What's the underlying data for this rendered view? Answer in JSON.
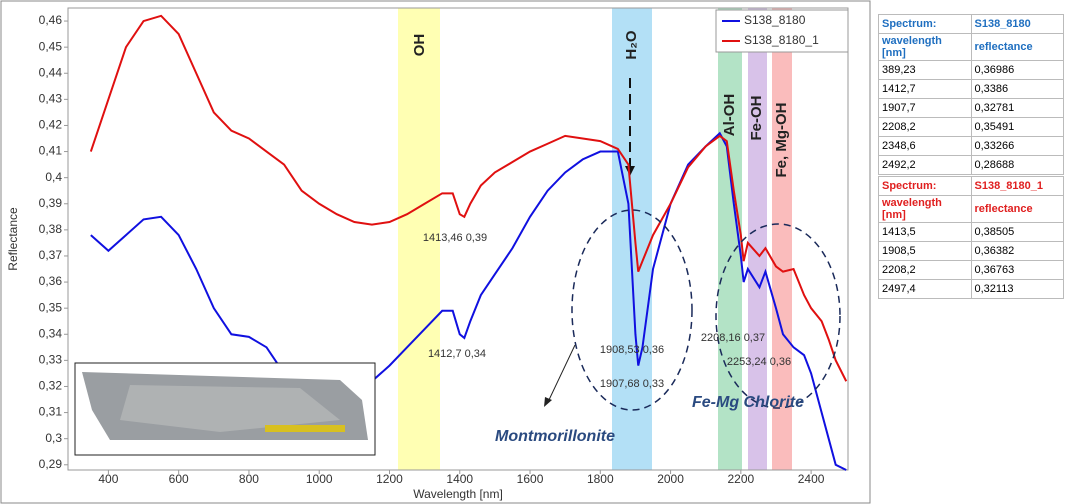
{
  "chart_data": {
    "type": "line",
    "x_label": "Wavelength [nm]",
    "y_label": "Reflectance",
    "x": [
      350,
      400,
      450,
      500,
      550,
      600,
      650,
      700,
      750,
      800,
      850,
      900,
      950,
      1000,
      1050,
      1100,
      1150,
      1200,
      1250,
      1300,
      1350,
      1380,
      1400,
      1413,
      1430,
      1460,
      1500,
      1550,
      1600,
      1650,
      1700,
      1750,
      1800,
      1850,
      1880,
      1900,
      1908,
      1920,
      1950,
      2000,
      2050,
      2100,
      2140,
      2160,
      2180,
      2200,
      2208,
      2220,
      2253,
      2270,
      2300,
      2320,
      2350,
      2380,
      2400,
      2430,
      2450,
      2470,
      2500
    ],
    "series": [
      {
        "name": "S138_8180",
        "color": "#1010e0",
        "values": [
          0.378,
          0.372,
          0.378,
          0.384,
          0.385,
          0.378,
          0.365,
          0.35,
          0.34,
          0.339,
          0.335,
          0.325,
          0.32,
          0.318,
          0.315,
          0.318,
          0.322,
          0.328,
          0.335,
          0.342,
          0.349,
          0.349,
          0.34,
          0.3386,
          0.345,
          0.355,
          0.363,
          0.373,
          0.385,
          0.395,
          0.402,
          0.407,
          0.41,
          0.41,
          0.39,
          0.34,
          0.328,
          0.335,
          0.365,
          0.39,
          0.405,
          0.412,
          0.417,
          0.412,
          0.39,
          0.37,
          0.36,
          0.365,
          0.358,
          0.364,
          0.35,
          0.34,
          0.335,
          0.332,
          0.325,
          0.31,
          0.3,
          0.29,
          0.288
        ]
      },
      {
        "name": "S138_8180_1",
        "color": "#e01010",
        "values": [
          0.41,
          0.43,
          0.45,
          0.46,
          0.462,
          0.455,
          0.44,
          0.425,
          0.418,
          0.415,
          0.41,
          0.405,
          0.395,
          0.39,
          0.386,
          0.383,
          0.382,
          0.383,
          0.386,
          0.39,
          0.394,
          0.394,
          0.386,
          0.385,
          0.39,
          0.397,
          0.402,
          0.406,
          0.41,
          0.413,
          0.416,
          0.415,
          0.414,
          0.411,
          0.405,
          0.375,
          0.364,
          0.368,
          0.378,
          0.39,
          0.404,
          0.412,
          0.416,
          0.414,
          0.395,
          0.378,
          0.368,
          0.375,
          0.37,
          0.373,
          0.366,
          0.364,
          0.365,
          0.355,
          0.35,
          0.345,
          0.338,
          0.33,
          0.322
        ]
      }
    ],
    "xlim": [
      285,
      2505
    ],
    "ylim": [
      0.288,
      0.465
    ],
    "xticks": [
      400,
      600,
      800,
      1000,
      1200,
      1400,
      1600,
      1800,
      2000,
      2200,
      2400
    ],
    "yticks": [
      {
        "value": 0.29,
        "label": "0,29"
      },
      {
        "value": 0.3,
        "label": "0,3"
      },
      {
        "value": 0.31,
        "label": "0,31"
      },
      {
        "value": 0.32,
        "label": "0,32"
      },
      {
        "value": 0.33,
        "label": "0,33"
      },
      {
        "value": 0.34,
        "label": "0,34"
      },
      {
        "value": 0.35,
        "label": "0,35"
      },
      {
        "value": 0.36,
        "label": "0,36"
      },
      {
        "value": 0.37,
        "label": "0,37"
      },
      {
        "value": 0.38,
        "label": "0,38"
      },
      {
        "value": 0.39,
        "label": "0,39"
      },
      {
        "value": 0.4,
        "label": "0,4"
      },
      {
        "value": 0.41,
        "label": "0,41"
      },
      {
        "value": 0.42,
        "label": "0,42"
      },
      {
        "value": 0.43,
        "label": "0,43"
      },
      {
        "value": 0.44,
        "label": "0,44"
      },
      {
        "value": 0.45,
        "label": "0,45"
      },
      {
        "value": 0.46,
        "label": "0,46"
      }
    ],
    "legend": "upper right",
    "bands": [
      "OH",
      "H₂O",
      "Al-OH",
      "Fe-OH",
      "Fe, Mg-OH"
    ],
    "point_labels": [
      "1413,46  0,39",
      "1412,7  0,34",
      "1908,53  0,36",
      "1907,68  0,33",
      "2208,16  0,37",
      "2253,24  0,36"
    ],
    "annotations": [
      "Montmorillonite",
      "Fe-Mg Chlorite"
    ]
  },
  "tables": [
    {
      "header": [
        "Spectrum:",
        "S138_8180"
      ],
      "columns": [
        "wavelength [nm]",
        "reflectance"
      ],
      "rows": [
        [
          "389,23",
          "0,36986"
        ],
        [
          "1412,7",
          "0,3386"
        ],
        [
          "1907,7",
          "0,32781"
        ],
        [
          "2208,2",
          "0,35491"
        ],
        [
          "2348,6",
          "0,33266"
        ],
        [
          "2492,2",
          "0,28688"
        ]
      ]
    },
    {
      "header": [
        "Spectrum:",
        "S138_8180_1"
      ],
      "columns": [
        "wavelength [nm]",
        "reflectance"
      ],
      "rows": [
        [
          "1413,5",
          "0,38505"
        ],
        [
          "1908,5",
          "0,36382"
        ],
        [
          "2208,2",
          "0,36763"
        ],
        [
          "2497,4",
          "0,32113"
        ]
      ]
    }
  ]
}
